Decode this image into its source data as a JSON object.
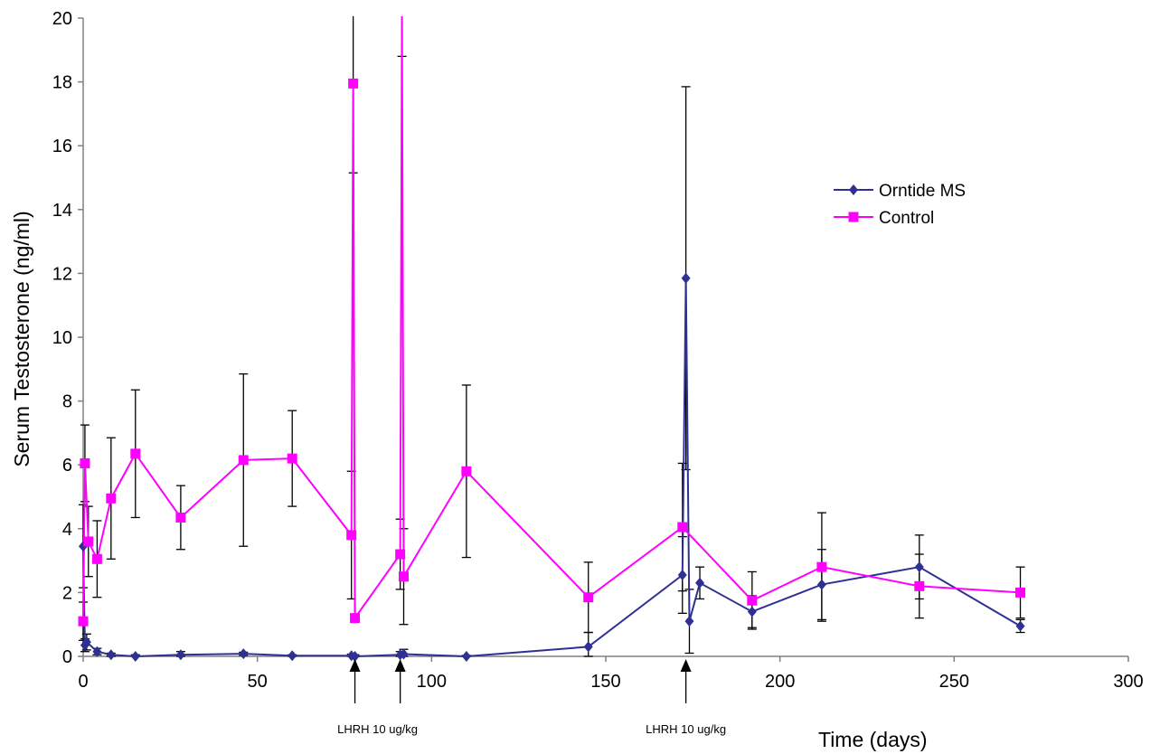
{
  "chart_data": {
    "type": "line",
    "title": "",
    "xlabel": "Time (days)",
    "ylabel": "Serum Testosterone (ng/ml)",
    "xlim": [
      0,
      300
    ],
    "ylim": [
      0,
      20
    ],
    "xticks": [
      0,
      50,
      100,
      150,
      200,
      250,
      300
    ],
    "yticks": [
      0,
      2,
      4,
      6,
      8,
      10,
      12,
      14,
      16,
      18,
      20
    ],
    "grid": false,
    "legend_position": "top-right",
    "series": [
      {
        "name": "Orntide MS",
        "color": "#2e3192",
        "marker": "diamond",
        "points": [
          {
            "x": 0,
            "y": 3.45,
            "err": 1.3
          },
          {
            "x": 0.5,
            "y": 0.35,
            "err": 0.2
          },
          {
            "x": 1,
            "y": 0.45,
            "err": 0.25
          },
          {
            "x": 4,
            "y": 0.15,
            "err": 0.1
          },
          {
            "x": 8,
            "y": 0.05,
            "err": 0.05
          },
          {
            "x": 15,
            "y": 0.0,
            "err": 0.05
          },
          {
            "x": 28,
            "y": 0.05,
            "err": 0.1
          },
          {
            "x": 46,
            "y": 0.08,
            "err": 0.05
          },
          {
            "x": 60,
            "y": 0.02,
            "err": 0.03
          },
          {
            "x": 77,
            "y": 0.02,
            "err": 0.05
          },
          {
            "x": 78,
            "y": 0.0,
            "err": 0.05
          },
          {
            "x": 91,
            "y": 0.05,
            "err": 0.1
          },
          {
            "x": 92,
            "y": 0.07,
            "err": 0.15
          },
          {
            "x": 110,
            "y": 0.0,
            "err": 0.03
          },
          {
            "x": 145,
            "y": 0.3,
            "err": 0.45
          },
          {
            "x": 172,
            "y": 2.55,
            "err": 1.2
          },
          {
            "x": 173,
            "y": 11.85,
            "err": 6.0
          },
          {
            "x": 174,
            "y": 1.1,
            "err": 1.0
          },
          {
            "x": 177,
            "y": 2.3,
            "err": 0.5
          },
          {
            "x": 192,
            "y": 1.4,
            "err": 0.5
          },
          {
            "x": 212,
            "y": 2.25,
            "err": 1.1
          },
          {
            "x": 240,
            "y": 2.8,
            "err": 1.0
          },
          {
            "x": 269,
            "y": 0.95,
            "err": 0.2
          }
        ]
      },
      {
        "name": "Control",
        "color": "#ff00ff",
        "marker": "square",
        "points": [
          {
            "x": 0,
            "y": 1.1,
            "err": 0.6
          },
          {
            "x": 0.5,
            "y": 6.05,
            "err": 1.2
          },
          {
            "x": 1.5,
            "y": 3.6,
            "err": 1.1
          },
          {
            "x": 4,
            "y": 3.05,
            "err": 1.2
          },
          {
            "x": 8,
            "y": 4.95,
            "err": 1.9
          },
          {
            "x": 15,
            "y": 6.35,
            "err": 2.0
          },
          {
            "x": 28,
            "y": 4.35,
            "err": 1.0
          },
          {
            "x": 46,
            "y": 6.15,
            "err": 2.7
          },
          {
            "x": 60,
            "y": 6.2,
            "err": 1.5
          },
          {
            "x": 77,
            "y": 3.8,
            "err": 2.0
          },
          {
            "x": 77.5,
            "y": 17.95,
            "err": 2.8
          },
          {
            "x": 78,
            "y": 1.2,
            "err": 0.1
          },
          {
            "x": 91,
            "y": 3.2,
            "err": 1.1
          },
          {
            "x": 91.5,
            "y": 21.5,
            "err": 2.7
          },
          {
            "x": 92,
            "y": 2.5,
            "err": 1.5
          },
          {
            "x": 110,
            "y": 5.8,
            "err": 2.7
          },
          {
            "x": 145,
            "y": 1.85,
            "err": 1.1
          },
          {
            "x": 172,
            "y": 4.05,
            "err": 2.0
          },
          {
            "x": 192,
            "y": 1.75,
            "err": 0.9
          },
          {
            "x": 212,
            "y": 2.8,
            "err": 1.7
          },
          {
            "x": 240,
            "y": 2.2,
            "err": 1.0
          },
          {
            "x": 269,
            "y": 2.0,
            "err": 0.8
          }
        ]
      }
    ],
    "annotations": [
      {
        "label": "LHRH  10 ug/kg",
        "arrows_at_x": [
          78,
          91
        ]
      },
      {
        "label": "LHRH  10 ug/kg",
        "arrows_at_x": [
          173
        ]
      }
    ]
  }
}
